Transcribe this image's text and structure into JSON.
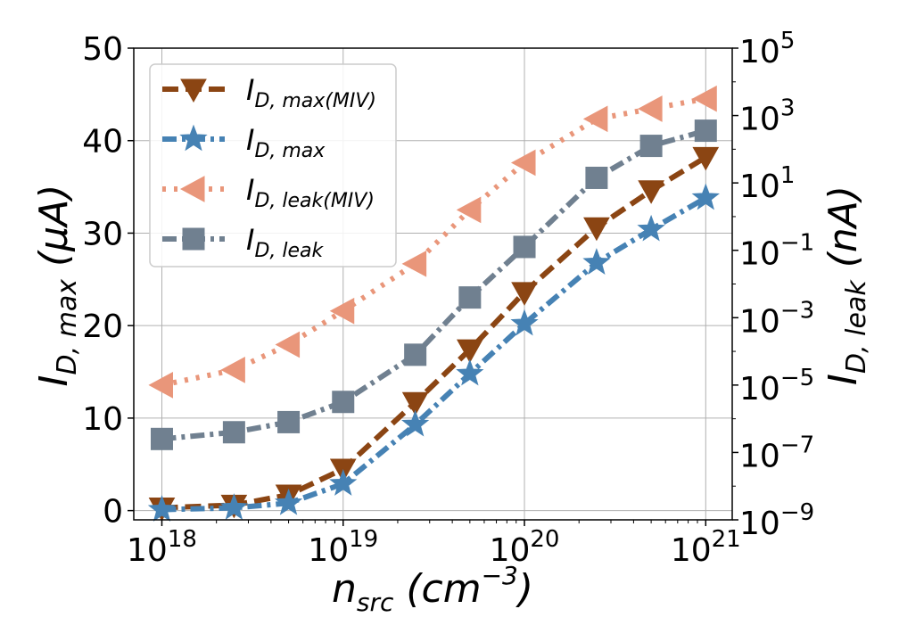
{
  "chart_data": {
    "type": "line",
    "x_scale": "log",
    "x": [
      1e+18,
      2.5e+18,
      5e+18,
      1e+19,
      2.5e+19,
      5e+19,
      1e+20,
      2.5e+20,
      5e+20,
      1e+21
    ],
    "xlim": [
      7e+17,
      1.4e+21
    ],
    "x_ticks": [
      {
        "base": "10",
        "exp": "18"
      },
      {
        "base": "10",
        "exp": "19"
      },
      {
        "base": "10",
        "exp": "20"
      },
      {
        "base": "10",
        "exp": "21"
      }
    ],
    "xlabel": {
      "main": "n",
      "sub": "src",
      "unit_open": " (cm",
      "unit_exp": "−3",
      "unit_close": ")"
    },
    "left_axis": {
      "ylim": [
        -1,
        50
      ],
      "ticks": [
        "0",
        "10",
        "20",
        "30",
        "40",
        "50"
      ],
      "label": {
        "main": "I",
        "sub": "D, max",
        "unit": " (μA)"
      }
    },
    "right_axis": {
      "scale": "log",
      "ylim_exp": [
        -9,
        5
      ],
      "ticks": [
        {
          "base": "10",
          "exp": "−9",
          "value": -9
        },
        {
          "base": "10",
          "exp": "−7",
          "value": -7
        },
        {
          "base": "10",
          "exp": "−5",
          "value": -5
        },
        {
          "base": "10",
          "exp": "−3",
          "value": -3
        },
        {
          "base": "10",
          "exp": "−1",
          "value": -1
        },
        {
          "base": "10",
          "exp": "1",
          "value": 1
        },
        {
          "base": "10",
          "exp": "3",
          "value": 3
        },
        {
          "base": "10",
          "exp": "5",
          "value": 5
        }
      ],
      "label": {
        "main": "I",
        "sub": "D, leak",
        "unit": " (nA)"
      }
    },
    "series": [
      {
        "name": "I_D,max(MIV)",
        "label_main": "I",
        "label_sub": "D, max(MIV)",
        "axis": "left",
        "color": "#8b4513",
        "marker": "triangle-down",
        "dash": "dashed",
        "values": [
          0.3,
          0.6,
          1.7,
          4.5,
          11.7,
          17.4,
          23.6,
          30.6,
          34.6,
          38.2
        ]
      },
      {
        "name": "I_D,max",
        "label_main": "I",
        "label_sub": "D, max",
        "axis": "left",
        "color": "#4682b4",
        "marker": "star",
        "dash": "dashdot",
        "values": [
          0.1,
          0.3,
          0.8,
          2.9,
          9.3,
          14.8,
          20.2,
          26.8,
          30.4,
          33.8
        ]
      },
      {
        "name": "I_D,leak(MIV)",
        "label_main": "I",
        "label_sub": "D, leak(MIV)",
        "axis": "right",
        "color": "#e9967a",
        "marker": "triangle-left",
        "dash": "dotted",
        "log_values": [
          -5.0,
          -4.55,
          -3.8,
          -2.8,
          -1.4,
          0.2,
          1.6,
          2.9,
          3.2,
          3.5
        ]
      },
      {
        "name": "I_D,leak",
        "label_main": "I",
        "label_sub": "D, leak",
        "axis": "right",
        "color": "#708090",
        "marker": "square",
        "dash": "dashdot",
        "log_values": [
          -6.6,
          -6.4,
          -6.1,
          -5.5,
          -4.1,
          -2.4,
          -0.9,
          1.15,
          2.1,
          2.55
        ]
      }
    ]
  }
}
